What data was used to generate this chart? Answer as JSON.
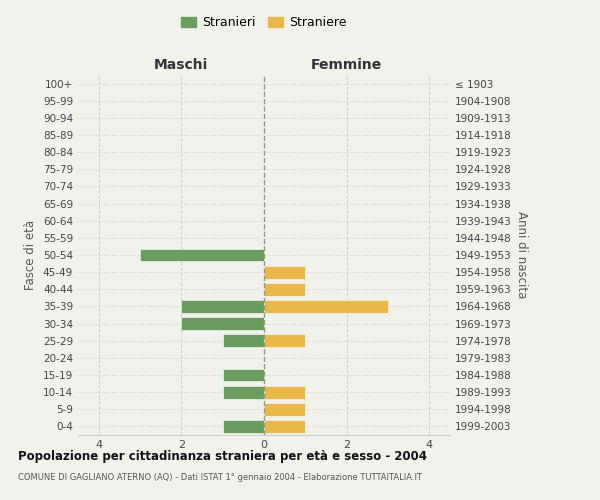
{
  "age_groups": [
    "0-4",
    "5-9",
    "10-14",
    "15-19",
    "20-24",
    "25-29",
    "30-34",
    "35-39",
    "40-44",
    "45-49",
    "50-54",
    "55-59",
    "60-64",
    "65-69",
    "70-74",
    "75-79",
    "80-84",
    "85-89",
    "90-94",
    "95-99",
    "100+"
  ],
  "birth_years": [
    "1999-2003",
    "1994-1998",
    "1989-1993",
    "1984-1988",
    "1979-1983",
    "1974-1978",
    "1969-1973",
    "1964-1968",
    "1959-1963",
    "1954-1958",
    "1949-1953",
    "1944-1948",
    "1939-1943",
    "1934-1938",
    "1929-1933",
    "1924-1928",
    "1919-1923",
    "1914-1918",
    "1909-1913",
    "1904-1908",
    "≤ 1903"
  ],
  "maschi": [
    1,
    0,
    1,
    1,
    0,
    1,
    2,
    2,
    0,
    0,
    3,
    0,
    0,
    0,
    0,
    0,
    0,
    0,
    0,
    0,
    0
  ],
  "femmine": [
    1,
    1,
    1,
    0,
    0,
    1,
    0,
    3,
    1,
    1,
    0,
    0,
    0,
    0,
    0,
    0,
    0,
    0,
    0,
    0,
    0
  ],
  "color_maschi": "#6a9e5f",
  "color_femmine": "#e8b84b",
  "background_color": "#f2f2ed",
  "grid_color": "#cccccc",
  "bar_height": 0.75,
  "xlim": 4.5,
  "title_main": "Popolazione per cittadinanza straniera per età e sesso - 2004",
  "title_sub": "COMUNE DI GAGLIANO ATERNO (AQ) - Dati ISTAT 1° gennaio 2004 - Elaborazione TUTTAITALIA.IT",
  "legend_maschi": "Stranieri",
  "legend_femmine": "Straniere",
  "xlabel_left": "Maschi",
  "xlabel_right": "Femmine",
  "ylabel_left": "Fasce di età",
  "ylabel_right": "Anni di nascita"
}
